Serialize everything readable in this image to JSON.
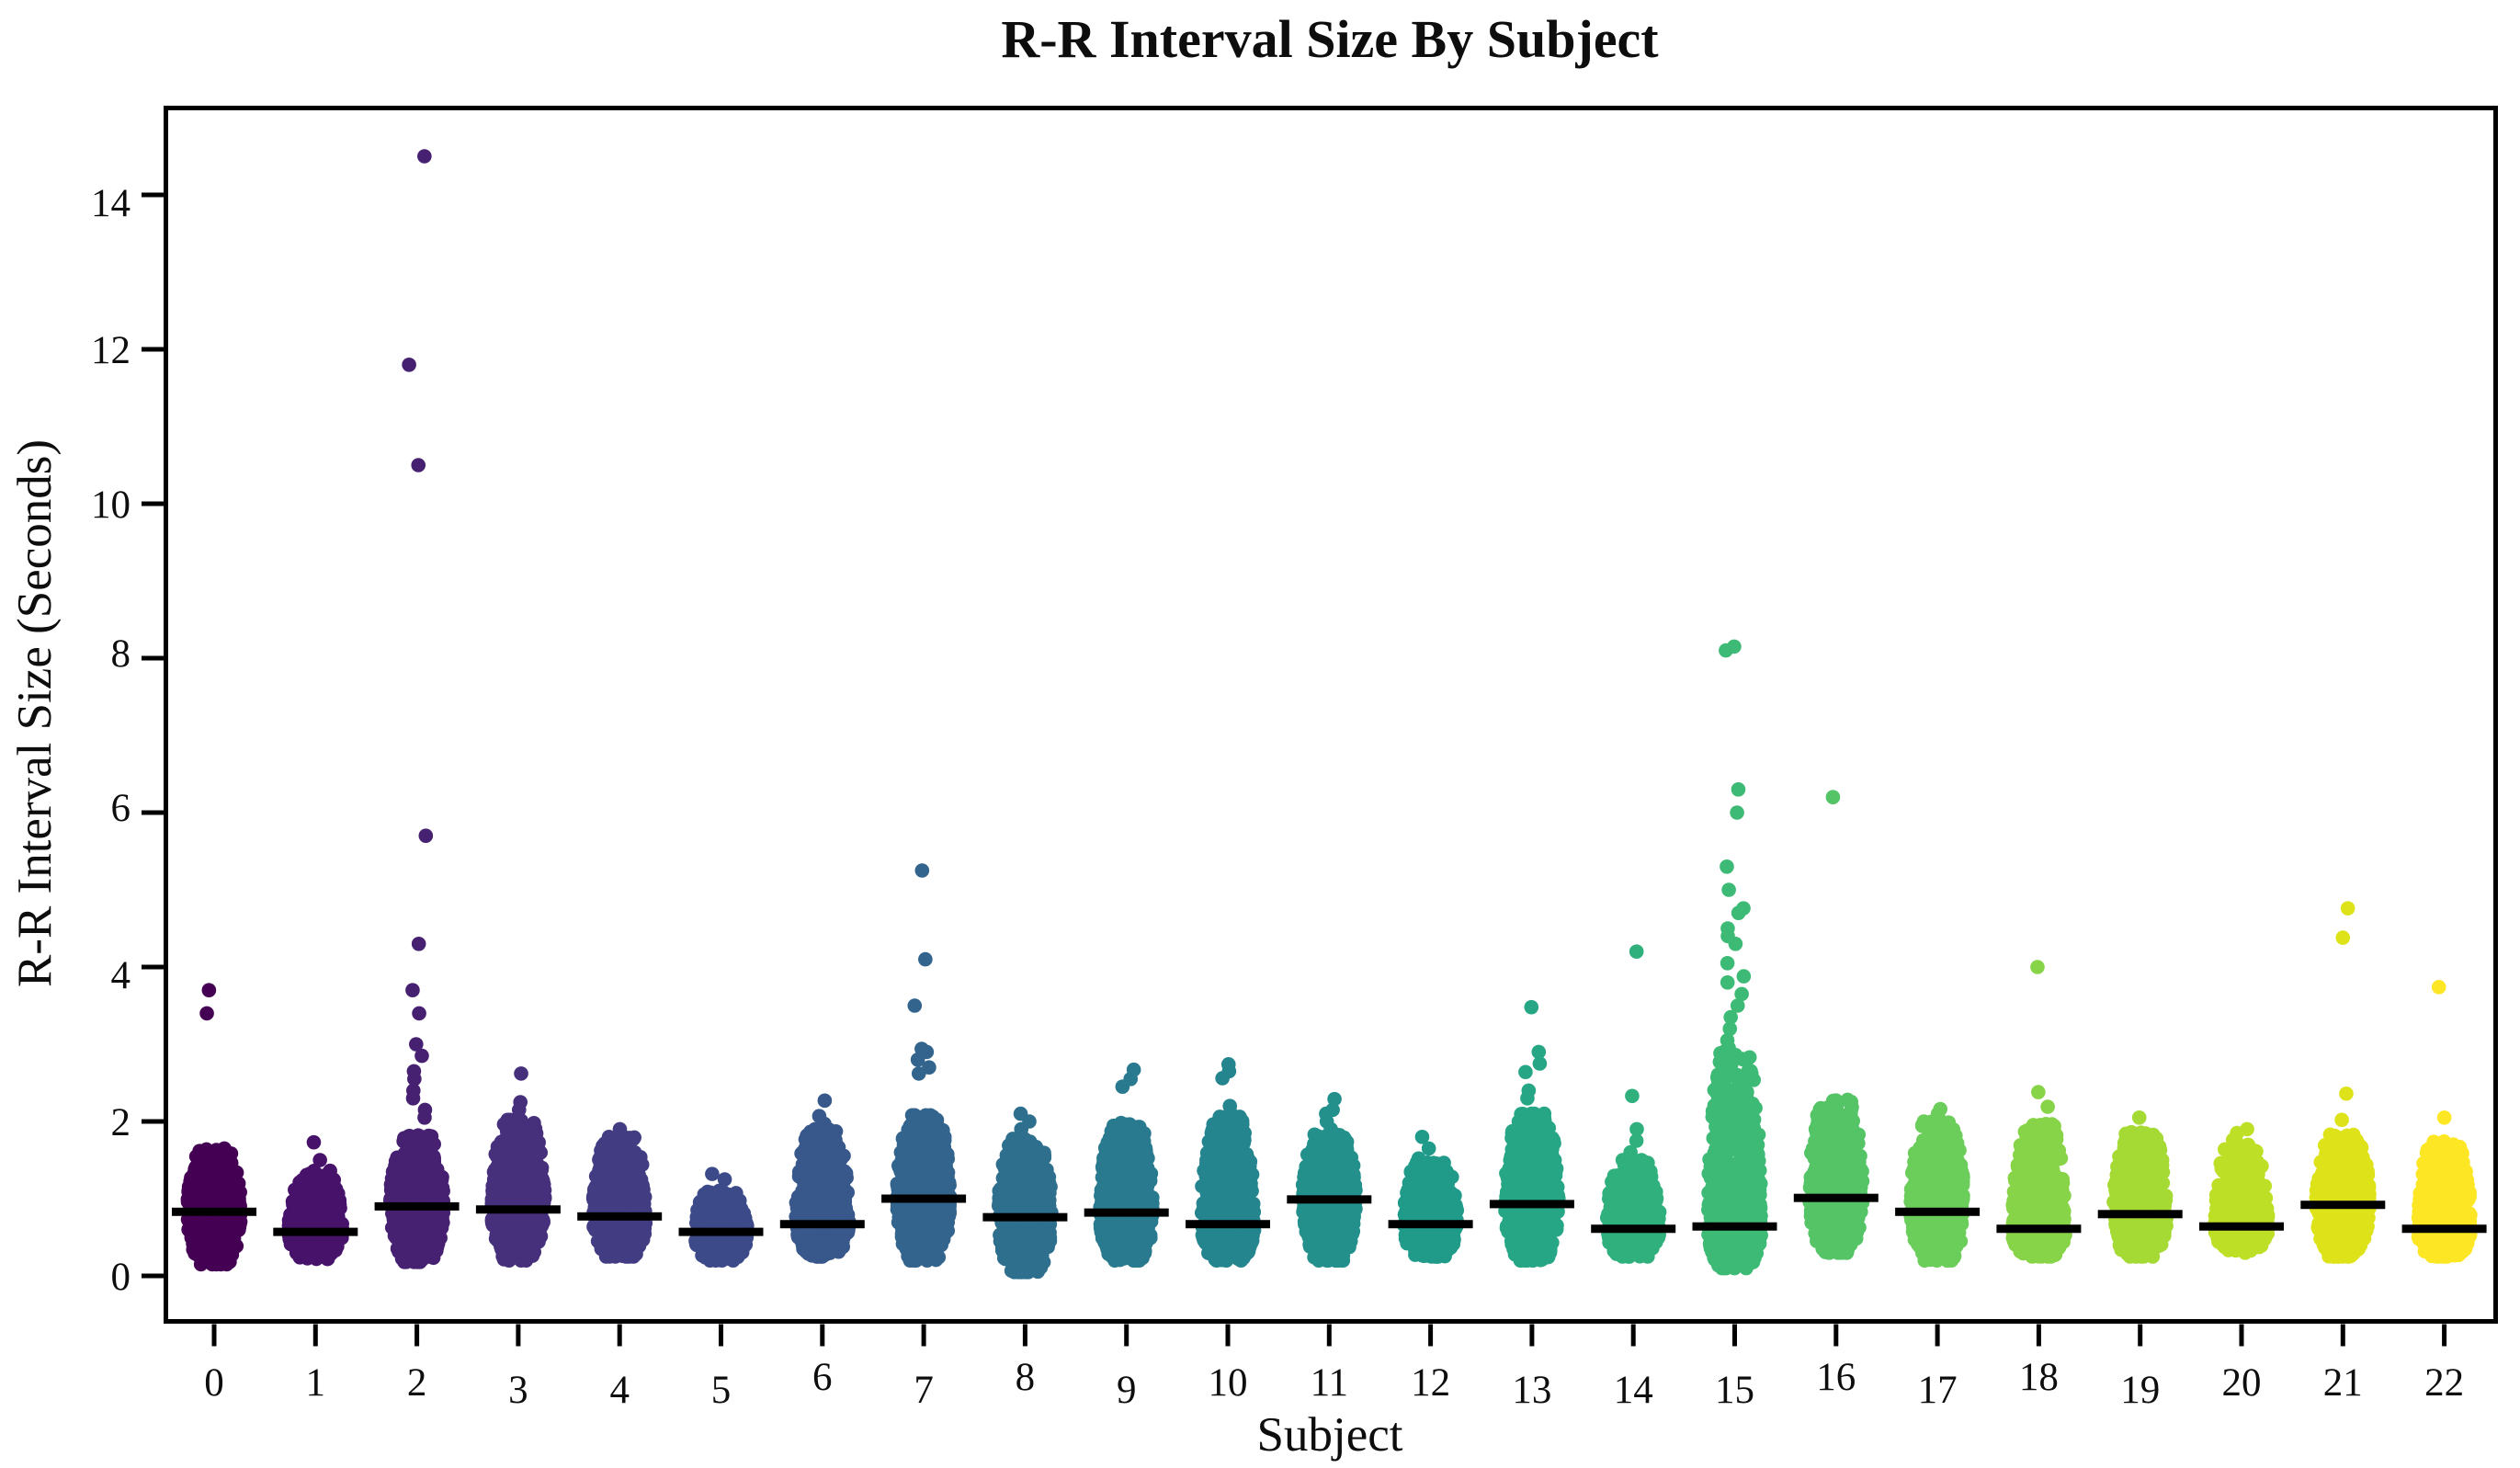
{
  "page": {
    "background": "#ffffff"
  },
  "chart_data": {
    "type": "strip",
    "title": "R-R Interval Size By Subject",
    "xlabel": "Subject",
    "ylabel": "R-R Interval Size (Seconds)",
    "y_ticks": [
      0,
      2,
      4,
      6,
      8,
      10,
      12,
      14
    ],
    "ylim": [
      -0.6,
      15.1
    ],
    "grid": false,
    "legend": "none",
    "palette": "viridis",
    "median_line_color": "#000000",
    "subjects": [
      {
        "label": "0",
        "color": "#440154",
        "median": 0.83,
        "dense_min": 0.15,
        "dense_max": 1.65,
        "n": 550,
        "outliers": [
          3.4,
          3.7
        ]
      },
      {
        "label": "1",
        "color": "#46126a",
        "median": 0.57,
        "dense_min": 0.22,
        "dense_max": 1.38,
        "n": 380,
        "outliers": [
          1.5,
          1.73
        ]
      },
      {
        "label": "2",
        "color": "#472171",
        "median": 0.9,
        "dense_min": 0.18,
        "dense_max": 1.82,
        "n": 600,
        "outliers": [
          2.05,
          2.15,
          2.3,
          2.4,
          2.55,
          2.65,
          2.85,
          3.0,
          3.4,
          3.7,
          4.3,
          5.7,
          10.5,
          11.8,
          14.5
        ]
      },
      {
        "label": "3",
        "color": "#46307c",
        "median": 0.86,
        "dense_min": 0.2,
        "dense_max": 2.02,
        "n": 550,
        "outliers": [
          2.15,
          2.25,
          2.62
        ]
      },
      {
        "label": "4",
        "color": "#423d83",
        "median": 0.77,
        "dense_min": 0.25,
        "dense_max": 1.8,
        "n": 500,
        "outliers": [
          1.9
        ]
      },
      {
        "label": "5",
        "color": "#3d4a89",
        "median": 0.57,
        "dense_min": 0.2,
        "dense_max": 1.1,
        "n": 300,
        "outliers": [
          1.25,
          1.32
        ]
      },
      {
        "label": "6",
        "color": "#38578b",
        "median": 0.67,
        "dense_min": 0.25,
        "dense_max": 1.9,
        "n": 500,
        "outliers": [
          1.97,
          2.07,
          2.27
        ]
      },
      {
        "label": "7",
        "color": "#33648d",
        "median": 1.0,
        "dense_min": 0.2,
        "dense_max": 2.08,
        "n": 600,
        "outliers": [
          2.62,
          2.7,
          2.8,
          2.9,
          2.94,
          3.5,
          4.1,
          5.25
        ]
      },
      {
        "label": "8",
        "color": "#2e6f8e",
        "median": 0.76,
        "dense_min": 0.05,
        "dense_max": 1.78,
        "n": 450,
        "outliers": [
          1.9,
          2.0,
          2.1
        ]
      },
      {
        "label": "9",
        "color": "#297a8e",
        "median": 0.82,
        "dense_min": 0.2,
        "dense_max": 1.98,
        "n": 550,
        "outliers": [
          2.45,
          2.55,
          2.67
        ]
      },
      {
        "label": "10",
        "color": "#25858e",
        "median": 0.67,
        "dense_min": 0.2,
        "dense_max": 2.06,
        "n": 600,
        "outliers": [
          2.1,
          2.2,
          2.56,
          2.65,
          2.74
        ]
      },
      {
        "label": "11",
        "color": "#23908c",
        "median": 0.99,
        "dense_min": 0.2,
        "dense_max": 1.83,
        "n": 600,
        "outliers": [
          1.9,
          2.0,
          2.1,
          2.15,
          2.29
        ]
      },
      {
        "label": "12",
        "color": "#209b8a",
        "median": 0.67,
        "dense_min": 0.25,
        "dense_max": 1.52,
        "n": 400,
        "outliers": [
          1.65,
          1.8
        ]
      },
      {
        "label": "13",
        "color": "#26a684",
        "median": 0.93,
        "dense_min": 0.2,
        "dense_max": 2.1,
        "n": 600,
        "outliers": [
          2.3,
          2.4,
          2.64,
          2.75,
          2.9,
          3.48
        ]
      },
      {
        "label": "14",
        "color": "#2fb07d",
        "median": 0.61,
        "dense_min": 0.25,
        "dense_max": 1.5,
        "n": 400,
        "outliers": [
          1.6,
          1.75,
          1.9,
          2.33,
          4.2
        ]
      },
      {
        "label": "15",
        "color": "#3dba75",
        "median": 0.64,
        "dense_min": 0.1,
        "dense_max": 2.95,
        "n": 700,
        "outliers": [
          3.05,
          3.2,
          3.35,
          3.5,
          3.65,
          3.8,
          3.88,
          4.05,
          4.3,
          4.4,
          4.5,
          4.7,
          4.76,
          5.0,
          5.3,
          6.0,
          6.3,
          8.1,
          8.15
        ]
      },
      {
        "label": "16",
        "color": "#54c467",
        "median": 1.01,
        "dense_min": 0.3,
        "dense_max": 2.28,
        "n": 550,
        "outliers": [
          6.2
        ]
      },
      {
        "label": "17",
        "color": "#6bcd5a",
        "median": 0.83,
        "dense_min": 0.2,
        "dense_max": 2.0,
        "n": 550,
        "outliers": [
          2.1,
          2.16
        ]
      },
      {
        "label": "18",
        "color": "#88d448",
        "median": 0.61,
        "dense_min": 0.25,
        "dense_max": 1.98,
        "n": 500,
        "outliers": [
          2.19,
          2.38,
          4.0
        ]
      },
      {
        "label": "19",
        "color": "#a5da35",
        "median": 0.8,
        "dense_min": 0.25,
        "dense_max": 1.86,
        "n": 500,
        "outliers": [
          2.05
        ]
      },
      {
        "label": "20",
        "color": "#bddf26",
        "median": 0.64,
        "dense_min": 0.3,
        "dense_max": 1.76,
        "n": 400,
        "outliers": [
          1.85,
          1.9
        ]
      },
      {
        "label": "21",
        "color": "#dde318",
        "median": 0.92,
        "dense_min": 0.25,
        "dense_max": 1.83,
        "n": 550,
        "outliers": [
          2.02,
          2.36,
          4.38,
          4.76
        ]
      },
      {
        "label": "22",
        "color": "#fde725",
        "median": 0.61,
        "dense_min": 0.25,
        "dense_max": 1.74,
        "n": 500,
        "outliers": [
          2.05,
          3.74
        ]
      }
    ]
  }
}
